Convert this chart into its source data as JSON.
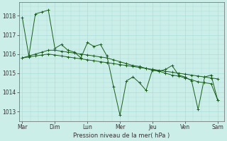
{
  "title": "",
  "xlabel": "Pression niveau de la mer( hPa )",
  "ylabel": "",
  "bg_color": "#cceee8",
  "grid_color": "#aaddda",
  "line_color": "#1a5e1a",
  "ylim": [
    1012.5,
    1018.7
  ],
  "yticks": [
    1013,
    1014,
    1015,
    1016,
    1017,
    1018
  ],
  "day_labels": [
    "Mar",
    "Dim",
    "Lun",
    "Mer",
    "Jeu",
    "Ven",
    "Sam"
  ],
  "series1": [
    1017.9,
    1015.9,
    1018.1,
    1018.2,
    1018.3,
    1016.3,
    1016.5,
    1016.2,
    1016.1,
    1015.8,
    1016.6,
    1016.4,
    1016.5,
    1015.9,
    1014.3,
    1012.8,
    1014.6,
    1014.8,
    1014.5,
    1014.1,
    1015.2,
    1015.1,
    1015.2,
    1015.4,
    1014.9,
    1014.8,
    1014.6,
    1013.1,
    1014.8,
    1014.9,
    1013.6
  ],
  "series2": [
    1015.8,
    1015.85,
    1015.9,
    1015.95,
    1016.0,
    1015.95,
    1015.9,
    1015.85,
    1015.8,
    1015.75,
    1015.7,
    1015.65,
    1015.6,
    1015.55,
    1015.5,
    1015.45,
    1015.4,
    1015.35,
    1015.3,
    1015.25,
    1015.2,
    1015.15,
    1015.1,
    1015.05,
    1015.0,
    1014.95,
    1014.9,
    1014.85,
    1014.8,
    1014.75,
    1014.7
  ],
  "series3": [
    1015.8,
    1015.9,
    1016.0,
    1016.1,
    1016.2,
    1016.2,
    1016.15,
    1016.1,
    1016.05,
    1016.0,
    1015.95,
    1015.9,
    1015.85,
    1015.8,
    1015.7,
    1015.6,
    1015.5,
    1015.4,
    1015.35,
    1015.25,
    1015.15,
    1015.1,
    1015.0,
    1014.9,
    1014.85,
    1014.75,
    1014.65,
    1014.55,
    1014.5,
    1014.45,
    1013.6
  ]
}
